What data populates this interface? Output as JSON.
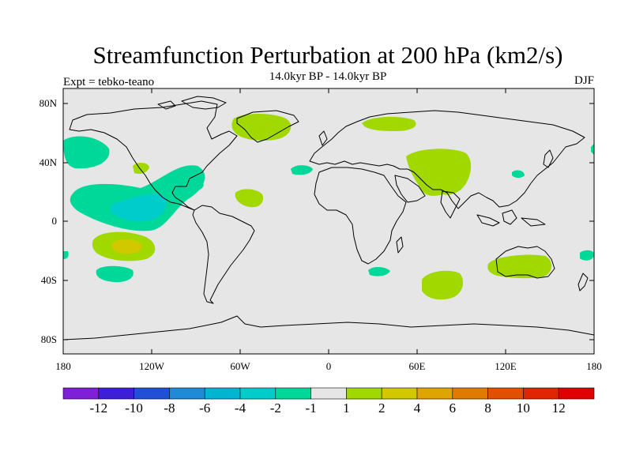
{
  "title": "Streamfunction Perturbation at 200 hPa (km2/s)",
  "subtitle": "14.0kyr BP - 14.0kyr BP",
  "experiment": "Expt = tebko-teano",
  "season": "DJF",
  "axes": {
    "lat_labels": [
      "80N",
      "40N",
      "0",
      "40S",
      "80S"
    ],
    "lon_labels": [
      "180",
      "120W",
      "60W",
      "0",
      "60E",
      "120E",
      "180"
    ]
  },
  "colorbar": {
    "colors": [
      "#7f1fd6",
      "#3d20d6",
      "#1f50d6",
      "#1f8ad6",
      "#00b4d2",
      "#00cccc",
      "#00d89a",
      "#e6e6e6",
      "#a0d800",
      "#d2c800",
      "#e0a400",
      "#e07a00",
      "#e05000",
      "#e02600",
      "#e00000"
    ],
    "labels": [
      "-12",
      "-10",
      "-8",
      "-6",
      "-4",
      "-2",
      "-1",
      "1",
      "2",
      "4",
      "6",
      "8",
      "10",
      "12"
    ]
  },
  "map_colors": {
    "background": "#e6e6e6",
    "neg1": "#00d89a",
    "neg2": "#00cccc",
    "pos1": "#a0d800",
    "pos2": "#d2c800"
  }
}
